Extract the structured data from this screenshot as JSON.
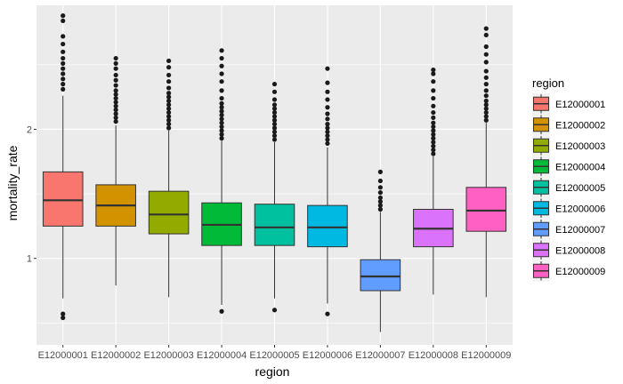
{
  "chart_data": {
    "type": "boxplot",
    "title": "",
    "xlabel": "region",
    "ylabel": "mortality_rate",
    "ylim": [
      0.33,
      2.96
    ],
    "yticks": [
      1,
      2
    ],
    "grid": true,
    "legend": {
      "title": "region",
      "position": "right"
    },
    "categories": [
      "E12000001",
      "E12000002",
      "E12000003",
      "E12000004",
      "E12000005",
      "E12000006",
      "E12000007",
      "E12000008",
      "E12000009"
    ],
    "colors": [
      "#F8766D",
      "#D39200",
      "#93AA00",
      "#00BA38",
      "#00C19F",
      "#00B9E3",
      "#619CFF",
      "#DB72FB",
      "#FF61C3"
    ],
    "boxes": [
      {
        "region": "E12000001",
        "min": 0.69,
        "q1": 1.25,
        "median": 1.45,
        "q3": 1.67,
        "max": 2.26,
        "outliers": [
          0.54,
          0.57,
          2.31,
          2.35,
          2.39,
          2.43,
          2.47,
          2.51,
          2.55,
          2.6,
          2.66,
          2.72,
          2.84,
          2.88
        ]
      },
      {
        "region": "E12000002",
        "min": 0.79,
        "q1": 1.25,
        "median": 1.41,
        "q3": 1.57,
        "max": 2.03,
        "outliers": [
          2.06,
          2.09,
          2.12,
          2.15,
          2.18,
          2.21,
          2.24,
          2.27,
          2.3,
          2.34,
          2.38,
          2.42,
          2.47,
          2.51,
          2.55
        ]
      },
      {
        "region": "E12000003",
        "min": 0.7,
        "q1": 1.19,
        "median": 1.34,
        "q3": 1.52,
        "max": 1.99,
        "outliers": [
          2.01,
          2.04,
          2.07,
          2.1,
          2.13,
          2.16,
          2.19,
          2.22,
          2.25,
          2.28,
          2.32,
          2.37,
          2.42,
          2.48,
          2.53
        ]
      },
      {
        "region": "E12000004",
        "min": 0.64,
        "q1": 1.1,
        "median": 1.26,
        "q3": 1.43,
        "max": 1.91,
        "outliers": [
          0.59,
          1.93,
          1.96,
          1.99,
          2.02,
          2.05,
          2.08,
          2.11,
          2.14,
          2.17,
          2.2,
          2.24,
          2.3,
          2.37,
          2.43,
          2.49,
          2.55,
          2.61
        ]
      },
      {
        "region": "E12000005",
        "min": 0.69,
        "q1": 1.1,
        "median": 1.24,
        "q3": 1.42,
        "max": 1.9,
        "outliers": [
          0.6,
          1.92,
          1.95,
          1.98,
          2.01,
          2.04,
          2.07,
          2.1,
          2.13,
          2.16,
          2.19,
          2.23,
          2.29,
          2.35
        ]
      },
      {
        "region": "E12000006",
        "min": 0.65,
        "q1": 1.09,
        "median": 1.24,
        "q3": 1.41,
        "max": 1.86,
        "outliers": [
          0.57,
          1.89,
          1.92,
          1.95,
          1.98,
          2.01,
          2.04,
          2.08,
          2.12,
          2.17,
          2.23,
          2.29,
          2.36,
          2.47
        ]
      },
      {
        "region": "E12000007",
        "min": 0.43,
        "q1": 0.75,
        "median": 0.86,
        "q3": 0.99,
        "max": 1.36,
        "outliers": [
          1.38,
          1.41,
          1.44,
          1.47,
          1.51,
          1.55,
          1.6,
          1.67
        ]
      },
      {
        "region": "E12000008",
        "min": 0.72,
        "q1": 1.09,
        "median": 1.23,
        "q3": 1.38,
        "max": 1.79,
        "outliers": [
          1.81,
          1.84,
          1.87,
          1.9,
          1.93,
          1.96,
          1.99,
          2.02,
          2.05,
          2.09,
          2.13,
          2.18,
          2.24,
          2.3,
          2.37,
          2.43,
          2.46
        ]
      },
      {
        "region": "E12000009",
        "min": 0.7,
        "q1": 1.21,
        "median": 1.37,
        "q3": 1.55,
        "max": 2.05,
        "outliers": [
          2.07,
          2.1,
          2.13,
          2.16,
          2.19,
          2.22,
          2.26,
          2.3,
          2.35,
          2.4,
          2.45,
          2.52,
          2.58,
          2.64,
          2.73,
          2.78
        ]
      }
    ]
  }
}
